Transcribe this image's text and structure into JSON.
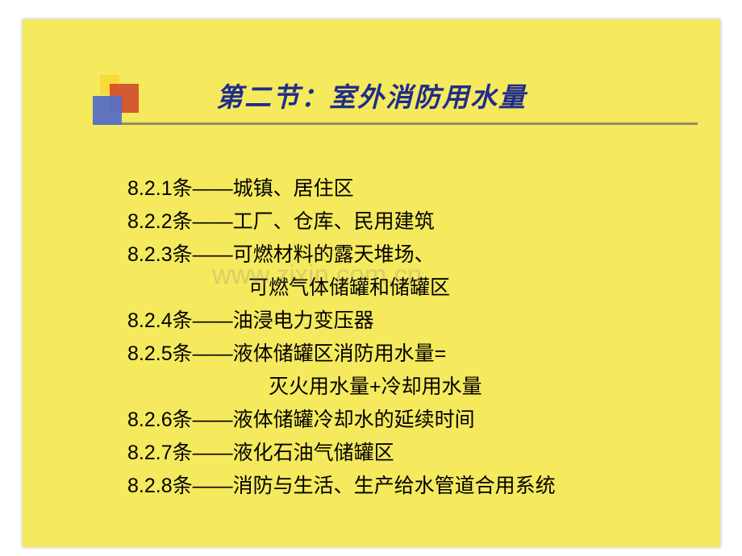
{
  "slide_background": "#f5e95d",
  "title": {
    "text": "第二节：室外消防用水量",
    "color": "#1f2d8c",
    "fontsize": 33
  },
  "content": {
    "fontsize": 25,
    "line_height": 41,
    "color": "#000000",
    "lines": [
      "8.2.1条——城镇、居住区",
      "8.2.2条——工厂、仓库、民用建筑",
      "8.2.3条——可燃材料的露天堆场、",
      "　　　　　　可燃气体储罐和储罐区",
      "8.2.4条——油浸电力变压器",
      "8.2.5条——液体储罐区消防用水量=",
      "　　　　　　　灭火用水量+冷却用水量",
      "8.2.6条——液体储罐冷却水的延续时间",
      "8.2.7条——液化石油气储罐区",
      "8.2.8条——消防与生活、生产给水管道合用系统"
    ]
  },
  "watermark": {
    "text": "www.zixin.com.cn",
    "color": "#888888",
    "fontsize": 33
  },
  "decor": {
    "yellow": "#f7da3a",
    "red": "#d04a2e",
    "blue": "#5670c4",
    "underline": "#958c68"
  }
}
